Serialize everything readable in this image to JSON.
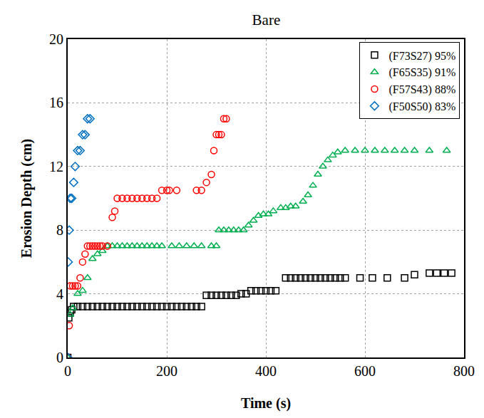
{
  "chart_data": {
    "type": "scatter",
    "title": "Bare",
    "x_label": "Time (s)",
    "y_label": "Erosion Depth (cm)",
    "xlim": [
      0,
      800
    ],
    "ylim": [
      0,
      20
    ],
    "xticks": [
      0,
      200,
      400,
      600,
      800
    ],
    "yticks": [
      0,
      4,
      8,
      12,
      16,
      20
    ],
    "grid": true,
    "legend": "upper right",
    "series": [
      {
        "name": "(F73S27) 95%",
        "color": "#000000",
        "marker": "square-open",
        "x": [
          0,
          2,
          5,
          8,
          12,
          20,
          30,
          40,
          50,
          60,
          70,
          80,
          90,
          100,
          110,
          120,
          130,
          140,
          150,
          160,
          170,
          180,
          190,
          200,
          210,
          220,
          230,
          240,
          250,
          260,
          270,
          280,
          290,
          300,
          310,
          320,
          330,
          340,
          350,
          360,
          370,
          380,
          390,
          400,
          410,
          420,
          440,
          450,
          460,
          470,
          480,
          490,
          500,
          510,
          520,
          530,
          540,
          550,
          560,
          590,
          615,
          645,
          680,
          700,
          730,
          745,
          760,
          775
        ],
        "values": [
          0,
          2.5,
          2.8,
          3,
          3.2,
          3.2,
          3.2,
          3.2,
          3.2,
          3.2,
          3.2,
          3.2,
          3.2,
          3.2,
          3.2,
          3.2,
          3.2,
          3.2,
          3.2,
          3.2,
          3.2,
          3.2,
          3.2,
          3.2,
          3.2,
          3.2,
          3.2,
          3.2,
          3.2,
          3.2,
          3.2,
          3.9,
          3.9,
          3.9,
          3.9,
          3.9,
          3.9,
          3.9,
          4,
          4,
          4.2,
          4.2,
          4.2,
          4.2,
          4.2,
          4.2,
          5,
          5,
          5,
          5,
          5,
          5,
          5,
          5,
          5,
          5,
          5,
          5,
          5,
          5,
          5,
          5,
          5,
          5.2,
          5.3,
          5.3,
          5.3,
          5.3
        ]
      },
      {
        "name": "(F65S35) 91%",
        "color": "#00b050",
        "marker": "triangle-up-open",
        "x": [
          0,
          5,
          10,
          20,
          30,
          40,
          50,
          60,
          70,
          80,
          90,
          100,
          110,
          120,
          130,
          140,
          150,
          160,
          170,
          180,
          190,
          210,
          225,
          240,
          255,
          270,
          290,
          300,
          305,
          315,
          325,
          335,
          345,
          355,
          365,
          375,
          385,
          395,
          405,
          415,
          430,
          440,
          450,
          460,
          475,
          485,
          495,
          505,
          515,
          525,
          535,
          545,
          560,
          580,
          600,
          620,
          640,
          660,
          680,
          700,
          730,
          765
        ],
        "values": [
          0,
          2.7,
          3.1,
          4,
          4.2,
          5,
          6.2,
          6.5,
          6.7,
          7,
          7,
          7,
          7,
          7,
          7,
          7,
          7,
          7,
          7,
          7,
          7,
          7,
          7,
          7,
          7,
          7,
          7,
          7,
          8,
          8,
          8,
          8,
          8,
          8,
          8.3,
          8.6,
          8.9,
          9,
          9,
          9.2,
          9.4,
          9.4,
          9.5,
          9.5,
          9.8,
          10.2,
          10.8,
          11.5,
          12,
          12.4,
          12.7,
          12.9,
          13,
          13,
          13,
          13,
          13,
          13,
          13,
          13,
          13,
          13
        ]
      },
      {
        "name": "(F57S43) 88%",
        "color": "#ff0000",
        "marker": "circle-open",
        "x": [
          0,
          3,
          5,
          10,
          15,
          20,
          25,
          30,
          35,
          40,
          45,
          50,
          55,
          60,
          65,
          70,
          80,
          90,
          95,
          100,
          110,
          120,
          130,
          140,
          150,
          160,
          170,
          180,
          190,
          200,
          205,
          220,
          260,
          270,
          280,
          290,
          295,
          300,
          305,
          310,
          315,
          320
        ],
        "values": [
          0,
          2,
          4.5,
          4.5,
          4.5,
          4.5,
          5,
          6,
          6.5,
          7,
          7,
          7,
          7,
          7,
          7,
          7,
          7,
          8.8,
          9.2,
          10,
          10,
          10,
          10,
          10,
          10,
          10,
          10,
          10,
          10.5,
          10.5,
          10.5,
          10.5,
          10.5,
          10.5,
          11,
          11.5,
          13,
          14,
          14,
          14,
          15,
          15
        ]
      },
      {
        "name": "(F50S50) 83%",
        "color": "#0070c0",
        "marker": "diamond-open",
        "x": [
          0,
          1,
          3,
          5,
          8,
          12,
          15,
          20,
          25,
          30,
          35,
          40,
          45
        ],
        "values": [
          0,
          6,
          8,
          10,
          10,
          11,
          12,
          13,
          13,
          14,
          14,
          15,
          15
        ]
      }
    ]
  }
}
